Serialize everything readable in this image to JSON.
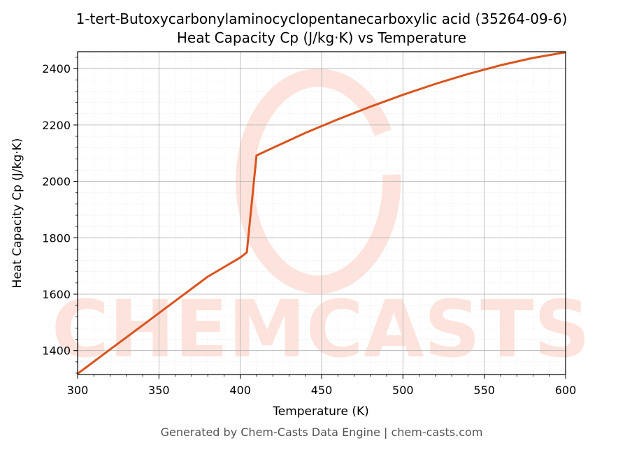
{
  "chart_data": {
    "type": "line",
    "title": "1-tert-Butoxycarbonylaminocyclopentanecarboxylic acid (35264-09-6)",
    "subtitle": "Heat Capacity Cp (J/kg·K) vs Temperature",
    "xlabel": "Temperature (K)",
    "ylabel": "Heat Capacity Cp (J/kg·K)",
    "xlim": [
      300,
      600
    ],
    "ylim": [
      1315,
      2460
    ],
    "xticks": [
      300,
      350,
      400,
      450,
      500,
      550,
      600
    ],
    "yticks": [
      1400,
      1600,
      1800,
      2000,
      2200,
      2400
    ],
    "grid": true,
    "series": [
      {
        "color": "#d9541e",
        "x": [
          300,
          320,
          340,
          360,
          380,
          400,
          404,
          410,
          420,
          440,
          460,
          480,
          500,
          520,
          540,
          560,
          580,
          600
        ],
        "y": [
          1318,
          1404,
          1490,
          1576,
          1662,
          1730,
          1748,
          2092,
          2119,
          2172,
          2220,
          2265,
          2307,
          2346,
          2381,
          2412,
          2438,
          2458
        ]
      }
    ]
  },
  "watermark": {
    "text": "CHEMCASTS",
    "color": "#fadbd2"
  },
  "footer": "Generated by Chem-Casts Data Engine | chem-casts.com"
}
